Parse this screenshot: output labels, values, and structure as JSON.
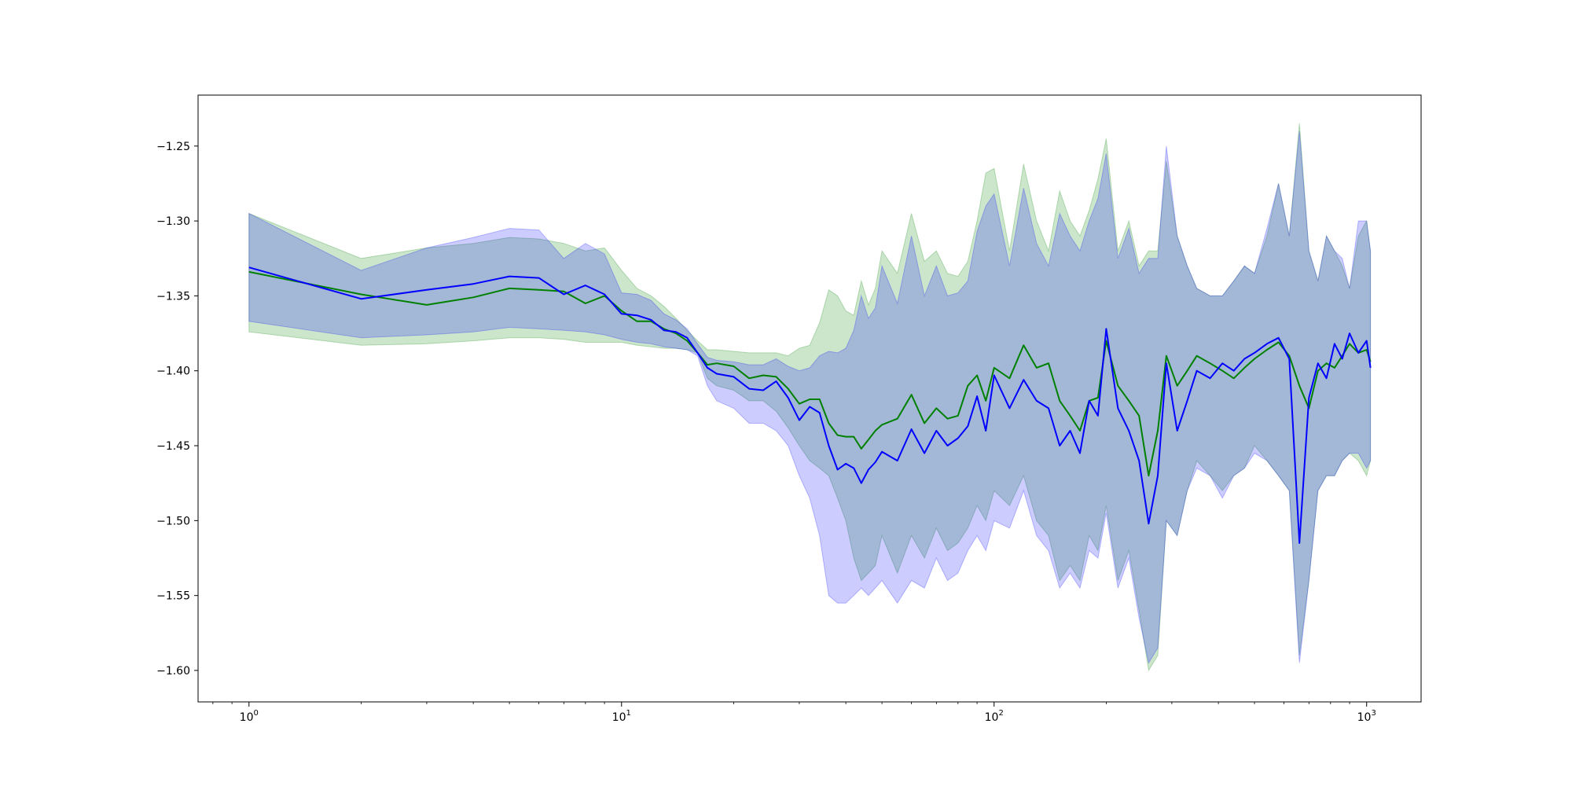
{
  "chart_data": {
    "type": "line",
    "title": "",
    "xlabel": "",
    "ylabel": "",
    "xscale": "log",
    "xlim": [
      0.73,
      1400
    ],
    "ylim": [
      -1.621,
      -1.216
    ],
    "grid": false,
    "legend": "none",
    "x_ticks": [
      {
        "value": 1,
        "base": "10",
        "exp": "0"
      },
      {
        "value": 10,
        "base": "10",
        "exp": "1"
      },
      {
        "value": 100,
        "base": "10",
        "exp": "2"
      },
      {
        "value": 1000,
        "base": "10",
        "exp": "3"
      }
    ],
    "y_ticks": [
      {
        "value": -1.25,
        "label": "−1.25"
      },
      {
        "value": -1.3,
        "label": "−1.30"
      },
      {
        "value": -1.35,
        "label": "−1.35"
      },
      {
        "value": -1.4,
        "label": "−1.40"
      },
      {
        "value": -1.45,
        "label": "−1.45"
      },
      {
        "value": -1.5,
        "label": "−1.50"
      },
      {
        "value": -1.55,
        "label": "−1.55"
      },
      {
        "value": -1.6,
        "label": "−1.60"
      }
    ],
    "series": [
      {
        "color": "#008000",
        "band_color": "#008000",
        "band_opacity": 0.2,
        "x": [
          1,
          2,
          3,
          4,
          5,
          6,
          7,
          8,
          9,
          10,
          11,
          12,
          13,
          14,
          15,
          16,
          17,
          18,
          20,
          22,
          24,
          26,
          28,
          30,
          32,
          34,
          36,
          38,
          40,
          42,
          44,
          46,
          48,
          50,
          55,
          60,
          65,
          70,
          75,
          80,
          85,
          90,
          95,
          100,
          110,
          120,
          130,
          140,
          150,
          160,
          170,
          180,
          190,
          200,
          215,
          230,
          245,
          260,
          275,
          290,
          310,
          330,
          350,
          380,
          410,
          440,
          470,
          500,
          540,
          580,
          620,
          660,
          700,
          740,
          780,
          820,
          860,
          900,
          950,
          1000,
          1024
        ],
        "y": [
          -1.334,
          -1.349,
          -1.356,
          -1.351,
          -1.345,
          -1.346,
          -1.347,
          -1.355,
          -1.35,
          -1.36,
          -1.367,
          -1.367,
          -1.372,
          -1.375,
          -1.38,
          -1.388,
          -1.396,
          -1.395,
          -1.397,
          -1.405,
          -1.403,
          -1.404,
          -1.412,
          -1.422,
          -1.419,
          -1.419,
          -1.435,
          -1.443,
          -1.444,
          -1.444,
          -1.452,
          -1.446,
          -1.44,
          -1.436,
          -1.432,
          -1.416,
          -1.435,
          -1.425,
          -1.432,
          -1.43,
          -1.41,
          -1.403,
          -1.42,
          -1.398,
          -1.405,
          -1.383,
          -1.398,
          -1.395,
          -1.42,
          -1.43,
          -1.44,
          -1.42,
          -1.418,
          -1.38,
          -1.41,
          -1.42,
          -1.43,
          -1.47,
          -1.44,
          -1.39,
          -1.41,
          -1.4,
          -1.39,
          -1.395,
          -1.4,
          -1.405,
          -1.398,
          -1.392,
          -1.386,
          -1.381,
          -1.39,
          -1.41,
          -1.425,
          -1.4,
          -1.395,
          -1.398,
          -1.39,
          -1.382,
          -1.388,
          -1.386,
          -1.394
        ],
        "upper": [
          -1.295,
          -1.325,
          -1.318,
          -1.315,
          -1.311,
          -1.312,
          -1.315,
          -1.32,
          -1.318,
          -1.333,
          -1.345,
          -1.35,
          -1.357,
          -1.365,
          -1.373,
          -1.38,
          -1.386,
          -1.386,
          -1.387,
          -1.388,
          -1.388,
          -1.388,
          -1.39,
          -1.385,
          -1.383,
          -1.368,
          -1.346,
          -1.35,
          -1.36,
          -1.363,
          -1.34,
          -1.356,
          -1.345,
          -1.32,
          -1.335,
          -1.295,
          -1.327,
          -1.32,
          -1.335,
          -1.337,
          -1.327,
          -1.3,
          -1.268,
          -1.265,
          -1.32,
          -1.262,
          -1.3,
          -1.32,
          -1.28,
          -1.3,
          -1.31,
          -1.293,
          -1.272,
          -1.245,
          -1.32,
          -1.3,
          -1.33,
          -1.32,
          -1.32,
          -1.26,
          -1.31,
          -1.33,
          -1.345,
          -1.35,
          -1.35,
          -1.34,
          -1.33,
          -1.335,
          -1.31,
          -1.275,
          -1.31,
          -1.235,
          -1.32,
          -1.34,
          -1.31,
          -1.32,
          -1.33,
          -1.345,
          -1.31,
          -1.3,
          -1.32
        ],
        "lower": [
          -1.374,
          -1.383,
          -1.382,
          -1.38,
          -1.378,
          -1.378,
          -1.379,
          -1.381,
          -1.381,
          -1.381,
          -1.383,
          -1.384,
          -1.385,
          -1.385,
          -1.386,
          -1.388,
          -1.405,
          -1.41,
          -1.413,
          -1.42,
          -1.42,
          -1.427,
          -1.438,
          -1.45,
          -1.46,
          -1.465,
          -1.47,
          -1.485,
          -1.5,
          -1.525,
          -1.54,
          -1.535,
          -1.53,
          -1.51,
          -1.535,
          -1.51,
          -1.525,
          -1.505,
          -1.52,
          -1.515,
          -1.505,
          -1.49,
          -1.5,
          -1.48,
          -1.49,
          -1.47,
          -1.5,
          -1.51,
          -1.54,
          -1.53,
          -1.54,
          -1.51,
          -1.52,
          -1.49,
          -1.54,
          -1.52,
          -1.56,
          -1.6,
          -1.59,
          -1.5,
          -1.51,
          -1.48,
          -1.46,
          -1.47,
          -1.48,
          -1.47,
          -1.465,
          -1.45,
          -1.46,
          -1.47,
          -1.48,
          -1.59,
          -1.54,
          -1.48,
          -1.47,
          -1.47,
          -1.46,
          -1.455,
          -1.46,
          -1.47,
          -1.46
        ]
      },
      {
        "color": "#0000ff",
        "band_color": "#0000ff",
        "band_opacity": 0.2,
        "x": [
          1,
          2,
          3,
          4,
          5,
          6,
          7,
          8,
          9,
          10,
          11,
          12,
          13,
          14,
          15,
          16,
          17,
          18,
          20,
          22,
          24,
          26,
          28,
          30,
          32,
          34,
          36,
          38,
          40,
          42,
          44,
          46,
          48,
          50,
          55,
          60,
          65,
          70,
          75,
          80,
          85,
          90,
          95,
          100,
          110,
          120,
          130,
          140,
          150,
          160,
          170,
          180,
          190,
          200,
          215,
          230,
          245,
          260,
          275,
          290,
          310,
          330,
          350,
          380,
          410,
          440,
          470,
          500,
          540,
          580,
          620,
          660,
          700,
          740,
          780,
          820,
          860,
          900,
          950,
          1000,
          1024
        ],
        "y": [
          -1.331,
          -1.352,
          -1.346,
          -1.342,
          -1.337,
          -1.338,
          -1.349,
          -1.343,
          -1.349,
          -1.362,
          -1.363,
          -1.366,
          -1.373,
          -1.374,
          -1.378,
          -1.388,
          -1.398,
          -1.402,
          -1.404,
          -1.412,
          -1.413,
          -1.407,
          -1.418,
          -1.433,
          -1.424,
          -1.428,
          -1.45,
          -1.466,
          -1.462,
          -1.465,
          -1.475,
          -1.466,
          -1.461,
          -1.454,
          -1.46,
          -1.439,
          -1.455,
          -1.44,
          -1.45,
          -1.445,
          -1.437,
          -1.417,
          -1.44,
          -1.403,
          -1.425,
          -1.406,
          -1.42,
          -1.425,
          -1.45,
          -1.44,
          -1.455,
          -1.42,
          -1.43,
          -1.372,
          -1.425,
          -1.44,
          -1.46,
          -1.502,
          -1.47,
          -1.395,
          -1.44,
          -1.42,
          -1.4,
          -1.405,
          -1.395,
          -1.4,
          -1.392,
          -1.388,
          -1.382,
          -1.378,
          -1.392,
          -1.515,
          -1.418,
          -1.395,
          -1.405,
          -1.382,
          -1.392,
          -1.375,
          -1.388,
          -1.38,
          -1.398
        ],
        "upper": [
          -1.295,
          -1.333,
          -1.318,
          -1.311,
          -1.305,
          -1.306,
          -1.325,
          -1.315,
          -1.322,
          -1.348,
          -1.349,
          -1.353,
          -1.362,
          -1.366,
          -1.372,
          -1.382,
          -1.391,
          -1.393,
          -1.394,
          -1.396,
          -1.396,
          -1.392,
          -1.397,
          -1.4,
          -1.398,
          -1.39,
          -1.387,
          -1.388,
          -1.385,
          -1.373,
          -1.35,
          -1.365,
          -1.358,
          -1.33,
          -1.355,
          -1.31,
          -1.35,
          -1.33,
          -1.35,
          -1.348,
          -1.34,
          -1.307,
          -1.29,
          -1.282,
          -1.33,
          -1.278,
          -1.315,
          -1.33,
          -1.295,
          -1.31,
          -1.32,
          -1.3,
          -1.285,
          -1.255,
          -1.325,
          -1.305,
          -1.335,
          -1.325,
          -1.325,
          -1.25,
          -1.31,
          -1.33,
          -1.345,
          -1.35,
          -1.35,
          -1.34,
          -1.33,
          -1.335,
          -1.305,
          -1.275,
          -1.31,
          -1.24,
          -1.32,
          -1.34,
          -1.31,
          -1.32,
          -1.325,
          -1.345,
          -1.3,
          -1.3,
          -1.32
        ],
        "lower": [
          -1.367,
          -1.378,
          -1.376,
          -1.374,
          -1.371,
          -1.372,
          -1.373,
          -1.374,
          -1.376,
          -1.379,
          -1.381,
          -1.382,
          -1.384,
          -1.385,
          -1.386,
          -1.39,
          -1.41,
          -1.42,
          -1.425,
          -1.435,
          -1.435,
          -1.44,
          -1.45,
          -1.47,
          -1.485,
          -1.51,
          -1.55,
          -1.555,
          -1.555,
          -1.55,
          -1.545,
          -1.55,
          -1.545,
          -1.54,
          -1.555,
          -1.54,
          -1.545,
          -1.525,
          -1.54,
          -1.535,
          -1.52,
          -1.51,
          -1.52,
          -1.5,
          -1.505,
          -1.48,
          -1.51,
          -1.52,
          -1.545,
          -1.535,
          -1.545,
          -1.52,
          -1.525,
          -1.495,
          -1.545,
          -1.525,
          -1.565,
          -1.595,
          -1.585,
          -1.5,
          -1.51,
          -1.48,
          -1.465,
          -1.47,
          -1.485,
          -1.47,
          -1.465,
          -1.455,
          -1.46,
          -1.47,
          -1.48,
          -1.595,
          -1.54,
          -1.48,
          -1.47,
          -1.47,
          -1.46,
          -1.455,
          -1.455,
          -1.465,
          -1.46
        ]
      }
    ]
  }
}
